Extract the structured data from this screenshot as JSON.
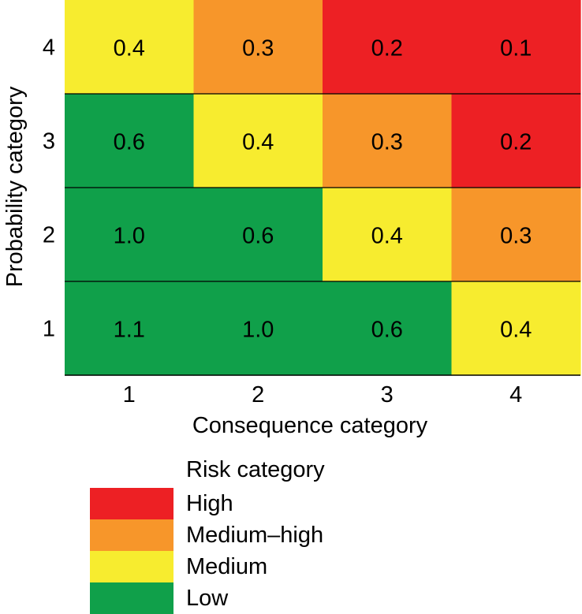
{
  "chart_data": {
    "type": "heatmap",
    "title": "",
    "xlabel": "Consequence category",
    "ylabel": "Probability category",
    "x_categories": [
      "1",
      "2",
      "3",
      "4"
    ],
    "y_categories": [
      "1",
      "2",
      "3",
      "4"
    ],
    "cells": [
      {
        "probability": "4",
        "consequence": "1",
        "value": "0.4",
        "risk": "Medium"
      },
      {
        "probability": "4",
        "consequence": "2",
        "value": "0.3",
        "risk": "Medium–high"
      },
      {
        "probability": "4",
        "consequence": "3",
        "value": "0.2",
        "risk": "High"
      },
      {
        "probability": "4",
        "consequence": "4",
        "value": "0.1",
        "risk": "High"
      },
      {
        "probability": "3",
        "consequence": "1",
        "value": "0.6",
        "risk": "Low"
      },
      {
        "probability": "3",
        "consequence": "2",
        "value": "0.4",
        "risk": "Medium"
      },
      {
        "probability": "3",
        "consequence": "3",
        "value": "0.3",
        "risk": "Medium–high"
      },
      {
        "probability": "3",
        "consequence": "4",
        "value": "0.2",
        "risk": "High"
      },
      {
        "probability": "2",
        "consequence": "1",
        "value": "1.0",
        "risk": "Low"
      },
      {
        "probability": "2",
        "consequence": "2",
        "value": "0.6",
        "risk": "Low"
      },
      {
        "probability": "2",
        "consequence": "3",
        "value": "0.4",
        "risk": "Medium"
      },
      {
        "probability": "2",
        "consequence": "4",
        "value": "0.3",
        "risk": "Medium–high"
      },
      {
        "probability": "1",
        "consequence": "1",
        "value": "1.1",
        "risk": "Low"
      },
      {
        "probability": "1",
        "consequence": "2",
        "value": "1.0",
        "risk": "Low"
      },
      {
        "probability": "1",
        "consequence": "3",
        "value": "0.6",
        "risk": "Low"
      },
      {
        "probability": "1",
        "consequence": "4",
        "value": "0.4",
        "risk": "Medium"
      }
    ],
    "legend": {
      "title": "Risk category",
      "entries": [
        {
          "label": "High",
          "color": "#ed2024"
        },
        {
          "label": "Medium–high",
          "color": "#f7962a"
        },
        {
          "label": "Medium",
          "color": "#f7ec2f"
        },
        {
          "label": "Low",
          "color": "#10a04a"
        }
      ]
    }
  }
}
